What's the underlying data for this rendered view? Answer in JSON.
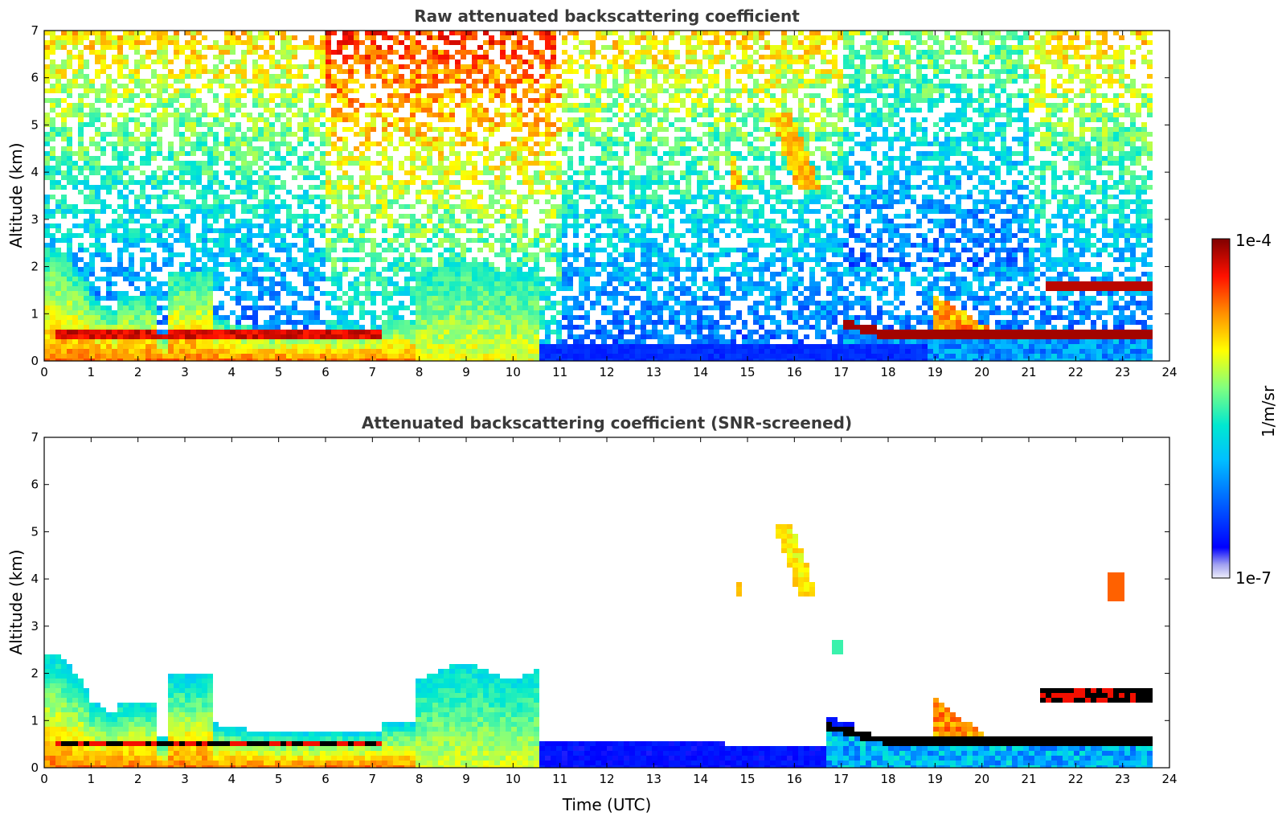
{
  "chart_data": [
    {
      "type": "heatmap",
      "title": "Raw attenuated backscattering coefficient",
      "xlabel": "",
      "ylabel": "Altitude (km)",
      "xlim": [
        0,
        24
      ],
      "ylim": [
        0,
        7
      ],
      "xticks": [
        "0",
        "1",
        "2",
        "3",
        "4",
        "5",
        "6",
        "7",
        "8",
        "9",
        "10",
        "11",
        "12",
        "13",
        "14",
        "15",
        "16",
        "17",
        "18",
        "19",
        "20",
        "21",
        "22",
        "23",
        "24"
      ],
      "yticks": [
        "0",
        "1",
        "2",
        "3",
        "4",
        "5",
        "6",
        "7"
      ],
      "grid": false,
      "features": [
        {
          "name": "boundary layer aerosol",
          "x": [
            0,
            10.6
          ],
          "y": [
            0,
            2.4
          ],
          "value": "high"
        },
        {
          "name": "low cloud layer",
          "x": [
            17,
            23.6
          ],
          "y": [
            0.4,
            0.8
          ],
          "value": "1e-4"
        },
        {
          "name": "cirrus streaks",
          "x": [
            11.5,
            17
          ],
          "y": [
            3.6,
            7
          ],
          "value": "high"
        },
        {
          "name": "elevated cloud layer",
          "x": [
            21.4,
            23.6
          ],
          "y": [
            1.4,
            1.7
          ],
          "value": "1e-4"
        }
      ]
    },
    {
      "type": "heatmap",
      "title": "Attenuated backscattering coefficient (SNR-screened)",
      "xlabel": "Time (UTC)",
      "ylabel": "Altitude (km)",
      "xlim": [
        0,
        24
      ],
      "ylim": [
        0,
        7
      ],
      "xticks": [
        "0",
        "1",
        "2",
        "3",
        "4",
        "5",
        "6",
        "7",
        "8",
        "9",
        "10",
        "11",
        "12",
        "13",
        "14",
        "15",
        "16",
        "17",
        "18",
        "19",
        "20",
        "21",
        "22",
        "23",
        "24"
      ],
      "yticks": [
        "0",
        "1",
        "2",
        "3",
        "4",
        "5",
        "6",
        "7"
      ],
      "grid": false,
      "features": [
        {
          "name": "boundary layer aerosol",
          "x": [
            0,
            10.6
          ],
          "y": [
            0,
            2.5
          ],
          "value": "high"
        },
        {
          "name": "low cloud layer",
          "x": [
            16.7,
            23.6
          ],
          "y": [
            0.4,
            0.9
          ],
          "value": "1e-4"
        },
        {
          "name": "cirrus patches",
          "x": [
            14.8,
            17.1
          ],
          "y": [
            3.6,
            5.2
          ],
          "value": "high"
        },
        {
          "name": "elevated cloud layer",
          "x": [
            21.2,
            23.6
          ],
          "y": [
            1.4,
            1.7
          ],
          "value": "1e-4"
        }
      ]
    }
  ],
  "colorbar": {
    "label": "1/m/sr",
    "max_label": "1e-4",
    "min_label": "1e-7",
    "scale": "log",
    "colors": [
      "#e6e6f5",
      "#8c8cf0",
      "#0000ff",
      "#0090ff",
      "#00e0e0",
      "#80ff80",
      "#ffff00",
      "#ff9000",
      "#ff0000",
      "#800000"
    ]
  }
}
